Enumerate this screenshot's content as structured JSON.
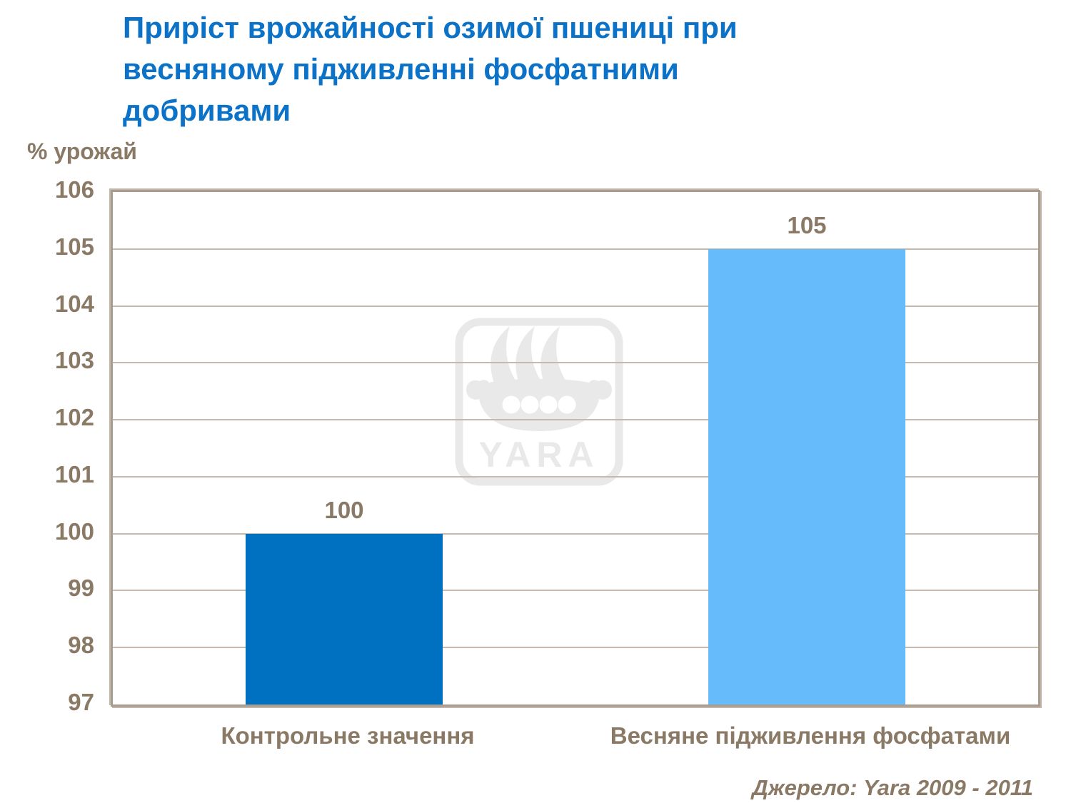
{
  "header": {
    "title_lines": [
      "Приріст врожайності озимої пшениці при",
      "весняному підживленні фосфатними",
      "добривами"
    ]
  },
  "y_axis_title": "% урожай",
  "source_text": "Джерело: Yara 2009 - 2011",
  "watermark_text": "YARA",
  "colors": {
    "title": "#0B72C8",
    "text_brown": "#8A7965",
    "plot_border": "#A89C8E",
    "gridline": "#C6BAAC",
    "watermark": "#E9E9E9",
    "bars": [
      "#0070C0",
      "#66BCFA"
    ]
  },
  "chart_data": {
    "type": "bar",
    "title": "Приріст врожайності озимої пшениці при весняному підживленні фосфатними добривами",
    "categories": [
      "Контрольне значення",
      "Весняне підживлення фосфатами"
    ],
    "values": [
      100,
      105
    ],
    "data_labels": [
      "100",
      "105"
    ],
    "series_colors": [
      "#0070C0",
      "#66BCFA"
    ],
    "xlabel": "",
    "ylabel": "% урожай",
    "ylim": [
      97,
      106
    ],
    "yticks": [
      97,
      98,
      99,
      100,
      101,
      102,
      103,
      104,
      105,
      106
    ],
    "grid": true,
    "legend": false
  }
}
